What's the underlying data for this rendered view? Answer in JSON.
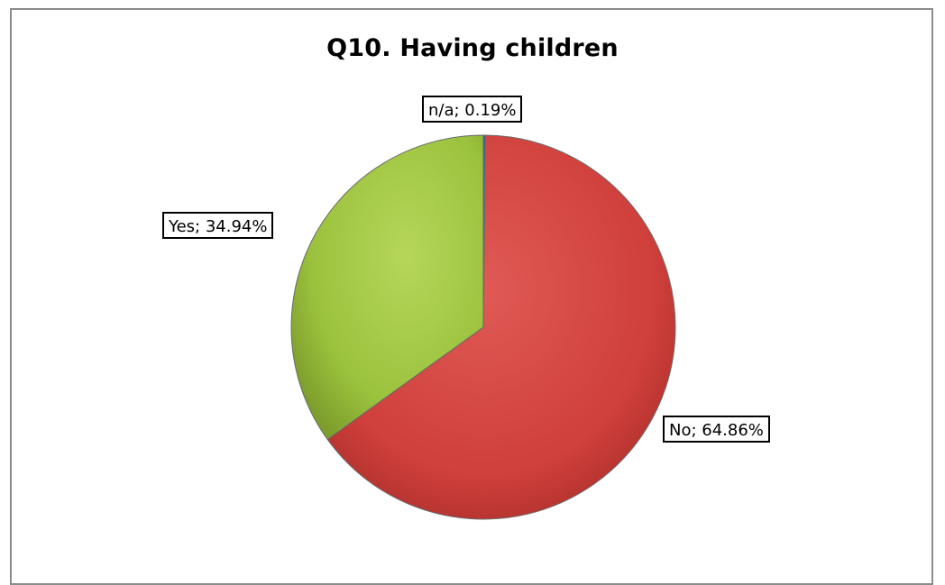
{
  "chart_data": {
    "type": "pie",
    "title": "Q10. Having children",
    "categories": [
      "n/a",
      "No",
      "Yes"
    ],
    "values": [
      0.19,
      64.86,
      34.94
    ],
    "colors": [
      "#1f497d",
      "#c0392b",
      "#9bbb3a"
    ],
    "labels": [
      "n/a; 0.19%",
      "No; 64.86%",
      "Yes; 34.94%"
    ],
    "legend": "none"
  }
}
